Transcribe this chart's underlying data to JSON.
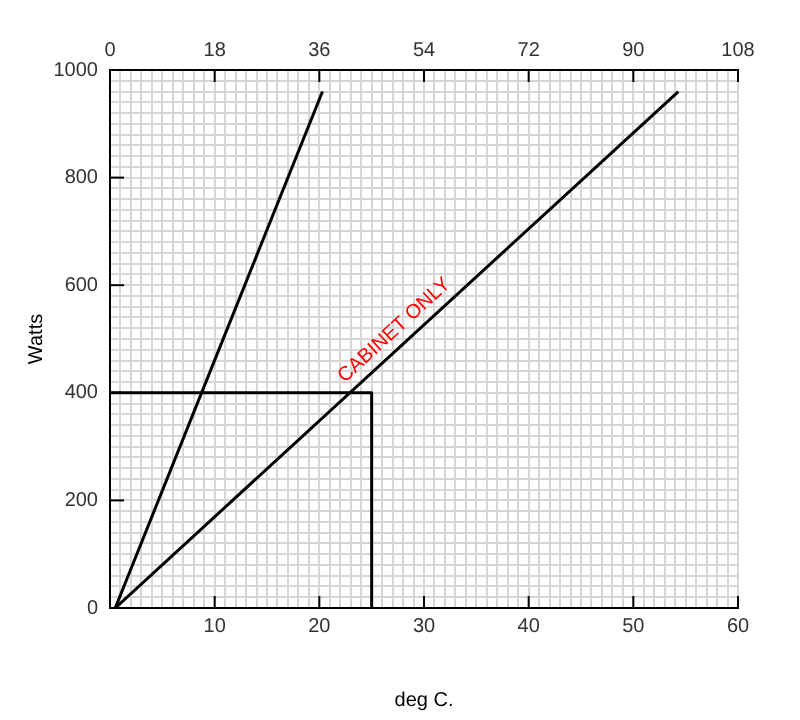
{
  "chart_data": {
    "type": "line",
    "xlabel": "deg C.",
    "ylabel": "Watts",
    "grid": true,
    "legend": false,
    "marker": "none",
    "line_style": "solid",
    "xlim": [
      0,
      60
    ],
    "ylim": [
      0,
      1000
    ],
    "x2lim": [
      0,
      108
    ],
    "xticks": [
      {
        "value": 0,
        "label": null
      },
      {
        "value": 1,
        "label": null
      },
      {
        "value": 2,
        "label": null
      },
      {
        "value": 3,
        "label": null
      },
      {
        "value": 4,
        "label": null
      },
      {
        "value": 5,
        "label": null
      },
      {
        "value": 6,
        "label": null
      },
      {
        "value": 7,
        "label": null
      },
      {
        "value": 8,
        "label": null
      },
      {
        "value": 9,
        "label": null
      },
      10,
      {
        "value": 11,
        "label": null
      },
      {
        "value": 12,
        "label": null
      },
      {
        "value": 13,
        "label": null
      },
      {
        "value": 14,
        "label": null
      },
      {
        "value": 15,
        "label": null
      },
      {
        "value": 16,
        "label": null
      },
      {
        "value": 17,
        "label": null
      },
      {
        "value": 18,
        "label": null
      },
      {
        "value": 19,
        "label": null
      },
      20,
      {
        "value": 21,
        "label": null
      },
      {
        "value": 22,
        "label": null
      },
      {
        "value": 23,
        "label": null
      },
      {
        "value": 24,
        "label": null
      },
      {
        "value": 25,
        "label": null
      },
      {
        "value": 26,
        "label": null
      },
      {
        "value": 27,
        "label": null
      },
      {
        "value": 28,
        "label": null
      },
      {
        "value": 29,
        "label": null
      },
      30,
      {
        "value": 31,
        "label": null
      },
      {
        "value": 32,
        "label": null
      },
      {
        "value": 33,
        "label": null
      },
      {
        "value": 34,
        "label": null
      },
      {
        "value": 35,
        "label": null
      },
      {
        "value": 36,
        "label": null
      },
      {
        "value": 37,
        "label": null
      },
      {
        "value": 38,
        "label": null
      },
      {
        "value": 39,
        "label": null
      },
      40,
      {
        "value": 41,
        "label": null
      },
      {
        "value": 42,
        "label": null
      },
      {
        "value": 43,
        "label": null
      },
      {
        "value": 44,
        "label": null
      },
      {
        "value": 45,
        "label": null
      },
      {
        "value": 46,
        "label": null
      },
      {
        "value": 47,
        "label": null
      },
      {
        "value": 48,
        "label": null
      },
      {
        "value": 49,
        "label": null
      },
      50,
      {
        "value": 51,
        "label": null
      },
      {
        "value": 52,
        "label": null
      },
      {
        "value": 53,
        "label": null
      },
      {
        "value": 54,
        "label": null
      },
      {
        "value": 55,
        "label": null
      },
      {
        "value": 56,
        "label": null
      },
      {
        "value": 57,
        "label": null
      },
      {
        "value": 58,
        "label": null
      },
      {
        "value": 59,
        "label": null
      },
      60
    ],
    "yticks": [
      0,
      {
        "value": 20,
        "label": null
      },
      {
        "value": 40,
        "label": null
      },
      {
        "value": 60,
        "label": null
      },
      {
        "value": 80,
        "label": null
      },
      {
        "value": 100,
        "label": null
      },
      {
        "value": 120,
        "label": null
      },
      {
        "value": 140,
        "label": null
      },
      {
        "value": 160,
        "label": null
      },
      {
        "value": 180,
        "label": null
      },
      200,
      {
        "value": 220,
        "label": null
      },
      {
        "value": 240,
        "label": null
      },
      {
        "value": 260,
        "label": null
      },
      {
        "value": 280,
        "label": null
      },
      {
        "value": 300,
        "label": null
      },
      {
        "value": 320,
        "label": null
      },
      {
        "value": 340,
        "label": null
      },
      {
        "value": 360,
        "label": null
      },
      {
        "value": 380,
        "label": null
      },
      400,
      {
        "value": 420,
        "label": null
      },
      {
        "value": 440,
        "label": null
      },
      {
        "value": 460,
        "label": null
      },
      {
        "value": 480,
        "label": null
      },
      {
        "value": 500,
        "label": null
      },
      {
        "value": 520,
        "label": null
      },
      {
        "value": 540,
        "label": null
      },
      {
        "value": 560,
        "label": null
      },
      {
        "value": 580,
        "label": null
      },
      600,
      {
        "value": 620,
        "label": null
      },
      {
        "value": 640,
        "label": null
      },
      {
        "value": 660,
        "label": null
      },
      {
        "value": 680,
        "label": null
      },
      {
        "value": 700,
        "label": null
      },
      {
        "value": 720,
        "label": null
      },
      {
        "value": 740,
        "label": null
      },
      {
        "value": 760,
        "label": null
      },
      {
        "value": 780,
        "label": null
      },
      800,
      {
        "value": 820,
        "label": null
      },
      {
        "value": 840,
        "label": null
      },
      {
        "value": 860,
        "label": null
      },
      {
        "value": 880,
        "label": null
      },
      {
        "value": 900,
        "label": null
      },
      {
        "value": 920,
        "label": null
      },
      {
        "value": 940,
        "label": null
      },
      {
        "value": 960,
        "label": null
      },
      {
        "value": 980,
        "label": null
      },
      1000
    ],
    "x2ticks": [
      0,
      18,
      36,
      54,
      72,
      90,
      108
    ],
    "series": [
      {
        "color": "#000000",
        "x": [
          0.5,
          20.3
        ],
        "values": [
          0,
          960
        ]
      },
      {
        "name": "CABINET ONLY",
        "color": "#000000",
        "x": [
          0.5,
          54.3
        ],
        "values": [
          0,
          960
        ]
      },
      {
        "color": "#000000",
        "x": [
          0,
          25,
          25
        ],
        "values": [
          400,
          400,
          0
        ]
      }
    ]
  }
}
